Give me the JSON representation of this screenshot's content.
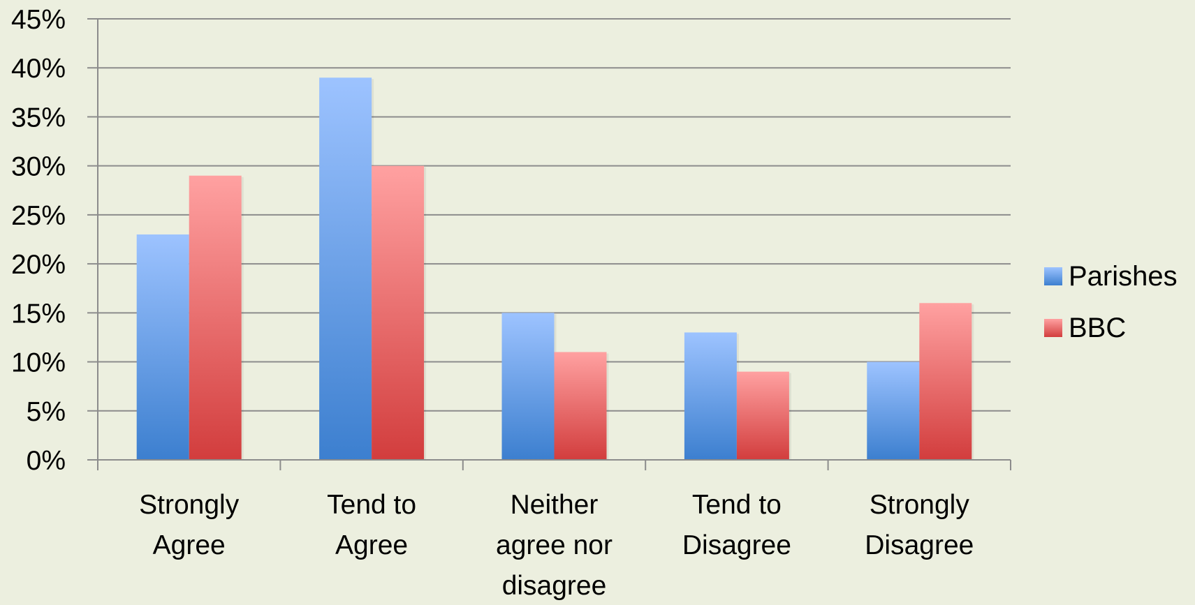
{
  "chart_data": {
    "type": "bar",
    "categories": [
      [
        "Strongly",
        "Agree"
      ],
      [
        "Tend to",
        "Agree"
      ],
      [
        "Neither",
        "agree nor",
        "disagree"
      ],
      [
        "Tend to",
        "Disagree"
      ],
      [
        "Strongly",
        "Disagree"
      ]
    ],
    "series": [
      {
        "name": "Parishes",
        "values": [
          23,
          39,
          15,
          13,
          10
        ],
        "color_top": "#9DC3FF",
        "color_bottom": "#3C7FCF"
      },
      {
        "name": "BBC",
        "values": [
          29,
          30,
          11,
          9,
          16
        ],
        "color_top": "#FFA1A1",
        "color_bottom": "#D23D3D"
      }
    ],
    "y_ticks": [
      "0%",
      "5%",
      "10%",
      "15%",
      "20%",
      "25%",
      "30%",
      "35%",
      "40%",
      "45%"
    ],
    "ylim": [
      0,
      45
    ],
    "y_unit": "%",
    "grid": true,
    "legend_position": "right",
    "colors": {
      "background": "#ECEFDF",
      "gridline": "#8C8C8C",
      "axis": "#8C8C8C"
    }
  }
}
